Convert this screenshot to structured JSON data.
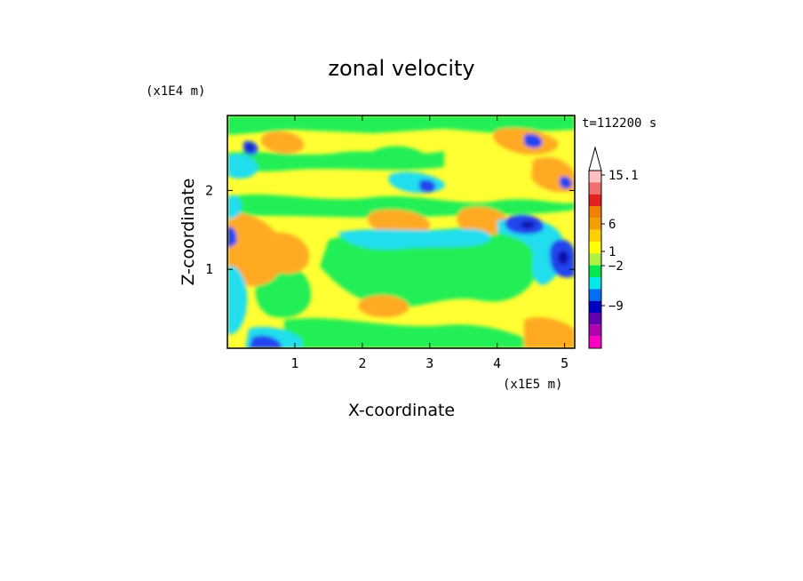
{
  "chart_data": {
    "type": "heatmap",
    "title": "zonal velocity",
    "xlabel": "X-coordinate",
    "ylabel": "Z-coordinate",
    "x_scale_label": "(x1E5 m)",
    "y_scale_label": "(x1E4 m)",
    "time_label": "t=112200 s",
    "xlim": [
      0,
      5.15
    ],
    "ylim": [
      0,
      2.95
    ],
    "x_ticks": [
      "1",
      "2",
      "3",
      "4",
      "5"
    ],
    "y_ticks": [
      "1",
      "2"
    ],
    "colorbar": {
      "labels": [
        "15.1",
        "6",
        "1",
        "−2",
        "−9"
      ],
      "colors": [
        "#ffc0c0",
        "#f07070",
        "#e52020",
        "#f08000",
        "#f0a000",
        "#ffd000",
        "#ffff00",
        "#b0f040",
        "#00e850",
        "#00e8e8",
        "#0070f0",
        "#0000c0",
        "#6000b0",
        "#b000b0",
        "#ff00c0"
      ]
    },
    "field_colors": {
      "green": "#22ee55",
      "yellow": "#ffff33",
      "orange": "#ffaa22",
      "cyan": "#22ddee",
      "blue": "#2244ee",
      "navy": "#1111aa"
    }
  }
}
